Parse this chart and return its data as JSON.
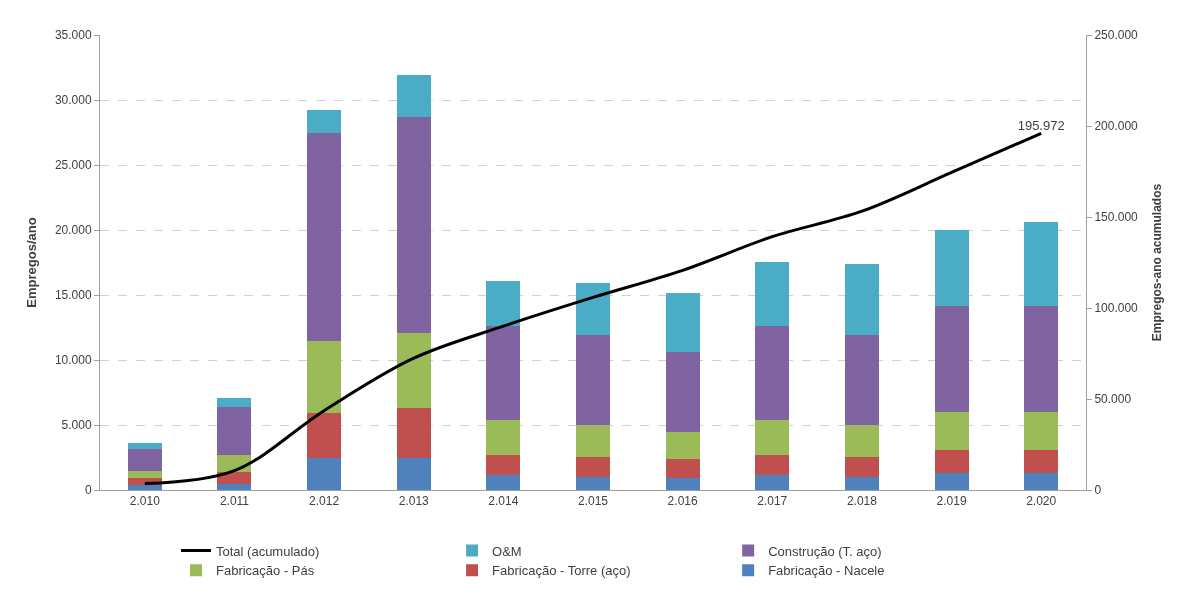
{
  "chart_data": {
    "type": "bar",
    "stacked": true,
    "categories": [
      "2.010",
      "2.011",
      "2.012",
      "2.013",
      "2.014",
      "2.015",
      "2.016",
      "2.017",
      "2.018",
      "2.019",
      "2.020"
    ],
    "ylabel": "Empregos/ano",
    "y2label": "Empregos-ano acumulados",
    "ylim": [
      0,
      35000
    ],
    "yticks": [
      {
        "value": 0,
        "label": "0"
      },
      {
        "value": 5000,
        "label": "5.000"
      },
      {
        "value": 10000,
        "label": "10.000"
      },
      {
        "value": 15000,
        "label": "15.000"
      },
      {
        "value": 20000,
        "label": "20.000"
      },
      {
        "value": 25000,
        "label": "25.000"
      },
      {
        "value": 30000,
        "label": "30.000"
      },
      {
        "value": 35000,
        "label": "35.000"
      }
    ],
    "y2lim": [
      0,
      250000
    ],
    "y2ticks": [
      {
        "value": 0,
        "label": "0"
      },
      {
        "value": 50000,
        "label": "50.000"
      },
      {
        "value": 100000,
        "label": "100.000"
      },
      {
        "value": 150000,
        "label": "150.000"
      },
      {
        "value": 200000,
        "label": "200.000"
      },
      {
        "value": 250000,
        "label": "250.000"
      }
    ],
    "grid": "y",
    "legend": "bottom",
    "series": [
      {
        "name": "Fabricação - Nacele",
        "color": "#4f81bd",
        "values": [
          400,
          500,
          2470,
          2470,
          1170,
          990,
          910,
          1170,
          990,
          1300,
          1300
        ]
      },
      {
        "name": "Fabricação - Torre (aço)",
        "color": "#c0504d",
        "values": [
          500,
          850,
          3450,
          3840,
          1560,
          1560,
          1510,
          1560,
          1560,
          1760,
          1760
        ]
      },
      {
        "name": "Fabricação - Pás",
        "color": "#9bbb59",
        "values": [
          530,
          1380,
          5560,
          5770,
          2650,
          2460,
          2080,
          2650,
          2460,
          2910,
          2910
        ]
      },
      {
        "name": "Construção (T. aço)",
        "color": "#8064a2",
        "values": [
          1690,
          3640,
          15980,
          16630,
          7270,
          6940,
          6150,
          7270,
          6940,
          8160,
          8160
        ]
      },
      {
        "name": "O&M",
        "color": "#4bacc6",
        "values": [
          520,
          700,
          1770,
          3190,
          3460,
          4000,
          4520,
          4860,
          5450,
          5870,
          6500
        ]
      },
      {
        "name": "Total (acumulado)",
        "type": "line",
        "axis": "y2",
        "color": "#000000",
        "marker": "none",
        "values": [
          3600,
          10700,
          43600,
          72400,
          90000,
          105800,
          120700,
          139200,
          153200,
          174500,
          195972
        ],
        "value_labels": [
          null,
          null,
          null,
          null,
          null,
          null,
          null,
          null,
          null,
          null,
          "195.972"
        ]
      }
    ]
  }
}
